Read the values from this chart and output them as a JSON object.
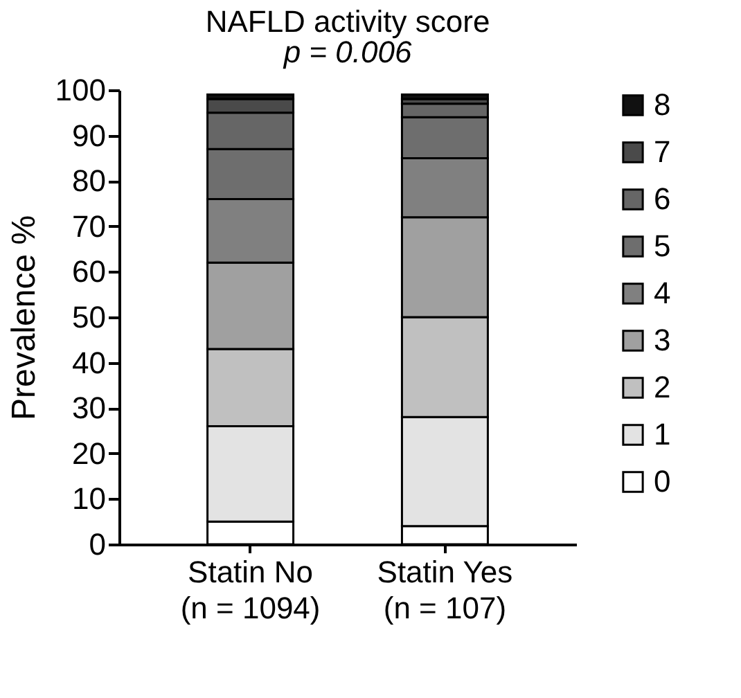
{
  "chart_data": {
    "type": "bar",
    "title": "NAFLD activity score",
    "subtitle": "p = 0.006",
    "ylabel": "Prevalence %",
    "stacked": true,
    "categories": [
      "Statin No\n(n = 1094)",
      "Statin Yes\n(n = 107)"
    ],
    "ylim": [
      0,
      100
    ],
    "yticks": [
      0,
      10,
      20,
      30,
      40,
      50,
      60,
      70,
      80,
      90,
      100
    ],
    "grid": false,
    "legend": "right",
    "series": [
      {
        "name": "0",
        "color": "#ffffff",
        "values": [
          5,
          4
        ]
      },
      {
        "name": "1",
        "color": "#e3e3e3",
        "values": [
          21,
          24
        ]
      },
      {
        "name": "2",
        "color": "#c0c0c0",
        "values": [
          17,
          22
        ]
      },
      {
        "name": "3",
        "color": "#a0a0a0",
        "values": [
          19,
          22
        ]
      },
      {
        "name": "4",
        "color": "#808080",
        "values": [
          14,
          13
        ]
      },
      {
        "name": "5",
        "color": "#6e6e6e",
        "values": [
          11,
          9
        ]
      },
      {
        "name": "6",
        "color": "#666666",
        "values": [
          8,
          3
        ]
      },
      {
        "name": "7",
        "color": "#4a4a4a",
        "values": [
          3,
          1
        ]
      },
      {
        "name": "8",
        "color": "#111111",
        "values": [
          1,
          1
        ]
      }
    ]
  }
}
